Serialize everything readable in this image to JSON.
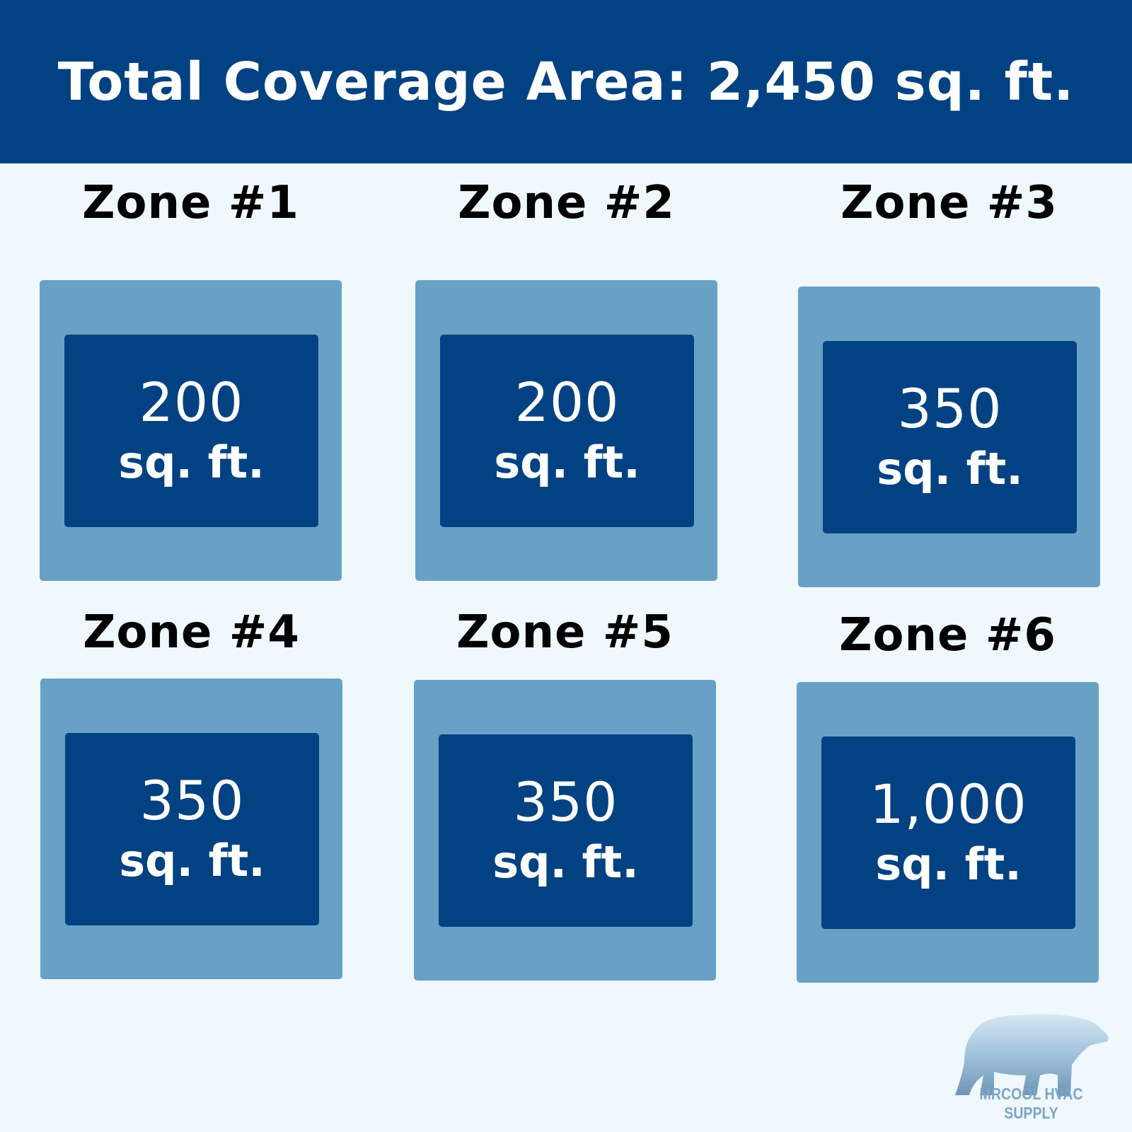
{
  "header": {
    "title": "Total Coverage Area: 2,450 sq. ft."
  },
  "zones": [
    {
      "label": "Zone #1",
      "value": "200",
      "unit": "sq. ft."
    },
    {
      "label": "Zone #2",
      "value": "200",
      "unit": "sq. ft."
    },
    {
      "label": "Zone #3",
      "value": "350",
      "unit": "sq. ft."
    },
    {
      "label": "Zone #4",
      "value": "350",
      "unit": "sq. ft."
    },
    {
      "label": "Zone #5",
      "value": "350",
      "unit": "sq. ft."
    },
    {
      "label": "Zone #6",
      "value": "1,000",
      "unit": "sq. ft."
    }
  ],
  "logo": {
    "text": "MRCOOL HVAC SUPPLY",
    "icon": "polar-bear-icon"
  },
  "colors": {
    "header": "#024282",
    "outer_box": "#69a1c6",
    "inner_box": "#024282",
    "background": "#eff8fd"
  }
}
